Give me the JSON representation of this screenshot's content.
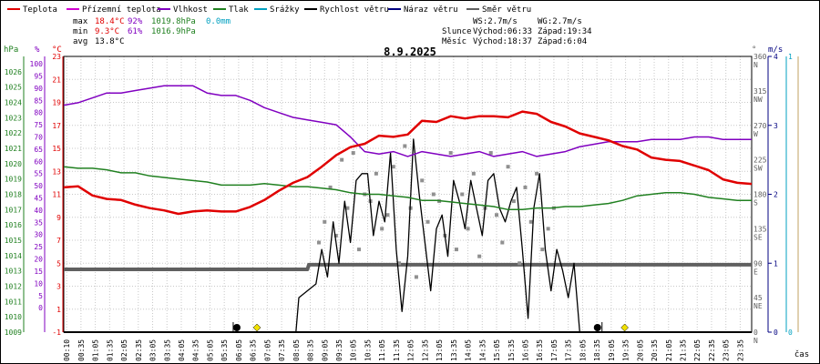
{
  "legend": [
    {
      "label": "Teplota",
      "color": "#e00000"
    },
    {
      "label": "Přízemní teplota",
      "color": "#d000d0"
    },
    {
      "label": "Vlhkost",
      "color": "#8000c0"
    },
    {
      "label": "Tlak",
      "color": "#208020"
    },
    {
      "label": "Srážky",
      "color": "#00a0c0"
    },
    {
      "label": "Rychlost větru",
      "color": "#000000"
    },
    {
      "label": "Náraz větru",
      "color": "#000080"
    },
    {
      "label": "Směr větru",
      "color": "#606060"
    }
  ],
  "stats": {
    "max": {
      "label": "max",
      "temp": "18.4°C",
      "hum": "92%",
      "press": "1019.8hPa",
      "rain": "0.0mm"
    },
    "min": {
      "label": "min",
      "temp": "9.3°C",
      "hum": "61%",
      "press": "1016.9hPa"
    },
    "avg": {
      "label": "avg",
      "temp": "13.8°C"
    }
  },
  "wind_info": {
    "ws": "WS:2.7m/s",
    "wg": "WG:2.7m/s"
  },
  "sun_info": {
    "label": "Slunce",
    "rise": "Východ:06:33",
    "set": "Západ:19:34"
  },
  "moon_info": {
    "label": "Měsíc",
    "rise": "Východ:18:37",
    "set": "Západ:6:04"
  },
  "date": "8.9.2025",
  "xaxis_label": "čas",
  "colors": {
    "temp": "#e00000",
    "humidity": "#8000c0",
    "pressure": "#208020",
    "wind": "#000000",
    "dir": "#606060",
    "gust_scatter": "#909090",
    "rain_axis": "#00a0c0",
    "sun": "#f0e000",
    "moon": "#000000"
  },
  "chart_data": {
    "type": "line",
    "title": "8.9.2025",
    "axes": {
      "pressure": {
        "unit": "hPa",
        "range": [
          1009,
          1027
        ],
        "ticks": [
          1009,
          1010,
          1011,
          1012,
          1013,
          1014,
          1015,
          1016,
          1017,
          1018,
          1019,
          1020,
          1021,
          1022,
          1023,
          1024,
          1025,
          1026
        ]
      },
      "humidity": {
        "unit": "%",
        "range": [
          -10,
          103
        ],
        "ticks": [
          0,
          5,
          10,
          15,
          20,
          25,
          30,
          35,
          40,
          45,
          50,
          55,
          60,
          65,
          70,
          75,
          80,
          85,
          90,
          95,
          100
        ]
      },
      "temperature": {
        "unit": "°C",
        "range": [
          -1,
          23
        ],
        "ticks": [
          -1,
          1,
          3,
          5,
          7,
          9,
          11,
          13,
          15,
          17,
          19,
          21,
          23
        ]
      },
      "direction": {
        "unit": "°",
        "range": [
          0,
          360
        ],
        "ticks": [
          "0",
          "45",
          "90",
          "135",
          "180",
          "225",
          "270",
          "315",
          "360"
        ],
        "compass": [
          "N",
          "NE",
          "E",
          "SE",
          "S",
          "SW",
          "W",
          "NW",
          "N"
        ]
      },
      "wind": {
        "unit": "m/s",
        "range": [
          0,
          4
        ],
        "ticks": [
          "0",
          "1",
          "2",
          "3",
          "4"
        ]
      },
      "rain": {
        "unit": "mm",
        "range": [
          0,
          1
        ],
        "ticks": [
          "0",
          "1"
        ]
      }
    },
    "x_ticks": [
      "00:10",
      "00:35",
      "01:05",
      "01:35",
      "02:05",
      "02:35",
      "03:05",
      "03:35",
      "04:05",
      "04:35",
      "05:05",
      "05:35",
      "06:05",
      "06:35",
      "07:05",
      "07:35",
      "08:05",
      "08:35",
      "09:05",
      "09:35",
      "10:05",
      "10:35",
      "11:05",
      "11:35",
      "12:05",
      "12:35",
      "13:05",
      "13:35",
      "14:05",
      "14:35",
      "15:05",
      "15:35",
      "16:05",
      "16:35",
      "17:05",
      "17:35",
      "18:05",
      "18:35",
      "19:05",
      "19:35",
      "20:05",
      "20:35",
      "21:05",
      "21:35",
      "22:05",
      "22:35",
      "23:05",
      "23:35"
    ],
    "series": [
      {
        "name": "Teplota",
        "axis": "temperature",
        "color": "#e00000",
        "x": [
          0,
          0.5,
          1,
          1.5,
          2,
          2.5,
          3,
          3.5,
          4,
          4.5,
          5,
          5.5,
          6,
          6.5,
          7,
          7.5,
          8,
          8.5,
          9,
          9.5,
          10,
          10.5,
          11,
          11.5,
          12,
          12.5,
          13,
          13.5,
          14,
          14.5,
          15,
          15.5,
          16,
          16.5,
          17,
          17.5,
          18,
          18.5,
          19,
          19.5,
          20,
          20.5,
          21,
          21.5,
          22,
          22.5,
          23,
          23.5,
          24
        ],
        "y": [
          11.6,
          11.7,
          10.9,
          10.6,
          10.5,
          10.1,
          9.8,
          9.6,
          9.3,
          9.5,
          9.6,
          9.5,
          9.5,
          9.9,
          10.5,
          11.3,
          12.0,
          12.5,
          13.4,
          14.4,
          15.1,
          15.4,
          16.1,
          16.0,
          16.2,
          17.4,
          17.3,
          17.8,
          17.6,
          17.8,
          17.8,
          17.7,
          18.2,
          18.0,
          17.3,
          16.9,
          16.3,
          16.0,
          15.7,
          15.2,
          14.9,
          14.2,
          14.0,
          13.9,
          13.5,
          13.1,
          12.3,
          12.0,
          11.9
        ]
      },
      {
        "name": "Vlhkost",
        "axis": "humidity",
        "color": "#8000c0",
        "x": [
          0,
          0.5,
          1,
          1.5,
          2,
          2.5,
          3,
          3.5,
          4,
          4.5,
          5,
          5.5,
          6,
          6.5,
          7,
          7.5,
          8,
          8.5,
          9,
          9.5,
          10,
          10.5,
          11,
          11.5,
          12,
          12.5,
          13,
          13.5,
          14,
          14.5,
          15,
          15.5,
          16,
          16.5,
          17,
          17.5,
          18,
          18.5,
          19,
          19.5,
          20,
          20.5,
          21,
          21.5,
          22,
          22.5,
          23,
          23.5,
          24
        ],
        "y": [
          83,
          84,
          86,
          88,
          88,
          89,
          90,
          91,
          91,
          91,
          88,
          87,
          87,
          85,
          82,
          80,
          78,
          77,
          76,
          75,
          70,
          64,
          63,
          64,
          62,
          64,
          63,
          62,
          63,
          64,
          62,
          63,
          64,
          62,
          63,
          64,
          66,
          67,
          68,
          68,
          68,
          69,
          69,
          69,
          70,
          70,
          69,
          69,
          69
        ]
      },
      {
        "name": "Tlak",
        "axis": "pressure",
        "color": "#208020",
        "x": [
          0,
          0.5,
          1,
          1.5,
          2,
          2.5,
          3,
          3.5,
          4,
          4.5,
          5,
          5.5,
          6,
          6.5,
          7,
          7.5,
          8,
          8.5,
          9,
          9.5,
          10,
          10.5,
          11,
          11.5,
          12,
          12.5,
          13,
          13.5,
          14,
          14.5,
          15,
          15.5,
          16,
          16.5,
          17,
          17.5,
          18,
          18.5,
          19,
          19.5,
          20,
          20.5,
          21,
          21.5,
          22,
          22.5,
          23,
          23.5,
          24
        ],
        "y": [
          1019.8,
          1019.7,
          1019.7,
          1019.6,
          1019.4,
          1019.4,
          1019.2,
          1019.1,
          1019.0,
          1018.9,
          1018.8,
          1018.6,
          1018.6,
          1018.6,
          1018.7,
          1018.6,
          1018.5,
          1018.5,
          1018.4,
          1018.3,
          1018.1,
          1018.0,
          1018.0,
          1017.9,
          1017.8,
          1017.6,
          1017.6,
          1017.5,
          1017.4,
          1017.3,
          1017.2,
          1017.0,
          1017.0,
          1017.1,
          1017.1,
          1017.2,
          1017.2,
          1017.3,
          1017.4,
          1017.6,
          1017.9,
          1018.0,
          1018.1,
          1018.1,
          1018.0,
          1017.8,
          1017.7,
          1017.6,
          1017.6
        ]
      },
      {
        "name": "Rychlost větru",
        "axis": "wind",
        "color": "#000000",
        "x": [
          0,
          8.1,
          8.2,
          8.8,
          9.0,
          9.2,
          9.4,
          9.6,
          9.8,
          10.0,
          10.2,
          10.4,
          10.6,
          10.8,
          11.0,
          11.2,
          11.4,
          11.6,
          11.8,
          12.0,
          12.2,
          12.4,
          12.6,
          12.8,
          13.0,
          13.2,
          13.4,
          13.6,
          13.8,
          14.0,
          14.2,
          14.4,
          14.6,
          14.8,
          15.0,
          15.2,
          15.4,
          15.6,
          15.8,
          16.0,
          16.2,
          16.4,
          16.6,
          16.8,
          17.0,
          17.2,
          17.4,
          17.6,
          17.8,
          18.0,
          24
        ],
        "y": [
          0,
          0,
          0.5,
          0.7,
          1.2,
          0.8,
          1.6,
          1.0,
          1.9,
          1.3,
          2.2,
          2.3,
          2.3,
          1.4,
          1.9,
          1.6,
          2.6,
          1.2,
          0.3,
          1.1,
          2.8,
          2.0,
          1.3,
          0.6,
          1.5,
          1.7,
          1.1,
          2.2,
          1.9,
          1.5,
          2.2,
          1.8,
          1.4,
          2.2,
          2.3,
          1.8,
          1.6,
          1.9,
          2.1,
          1.2,
          0.2,
          1.8,
          2.3,
          1.2,
          0.6,
          1.2,
          0.9,
          0.5,
          1.0,
          0,
          0
        ]
      },
      {
        "name": "Směr větru",
        "axis": "direction",
        "color": "#606060",
        "x": [
          0,
          8.5,
          8.55,
          24
        ],
        "y": [
          82,
          82,
          88,
          88
        ]
      }
    ],
    "gust_scatter": {
      "axis": "wind",
      "x": [
        8.9,
        9.1,
        9.3,
        9.5,
        9.7,
        9.9,
        10.1,
        10.3,
        10.5,
        10.7,
        10.9,
        11.1,
        11.3,
        11.5,
        11.7,
        11.9,
        12.1,
        12.3,
        12.5,
        12.7,
        12.9,
        13.1,
        13.3,
        13.5,
        13.7,
        13.9,
        14.1,
        14.3,
        14.5,
        14.7,
        14.9,
        15.1,
        15.3,
        15.5,
        15.7,
        15.9,
        16.1,
        16.3,
        16.5,
        16.7,
        16.9,
        17.1
      ],
      "y": [
        1.3,
        1.6,
        2.1,
        1.4,
        2.5,
        1.8,
        2.6,
        1.2,
        2.0,
        1.9,
        2.3,
        1.5,
        1.7,
        2.4,
        1.0,
        2.7,
        1.8,
        0.8,
        2.2,
        1.6,
        2.0,
        1.9,
        1.4,
        2.6,
        1.2,
        2.0,
        1.5,
        2.3,
        1.1,
        1.8,
        2.6,
        1.7,
        1.3,
        2.4,
        1.9,
        1.0,
        2.1,
        1.6,
        2.3,
        1.2,
        1.5,
        1.8
      ]
    },
    "sun": {
      "rise": 6.55,
      "set": 19.57
    },
    "moon": {
      "rise": 18.62,
      "set": 6.07
    }
  }
}
